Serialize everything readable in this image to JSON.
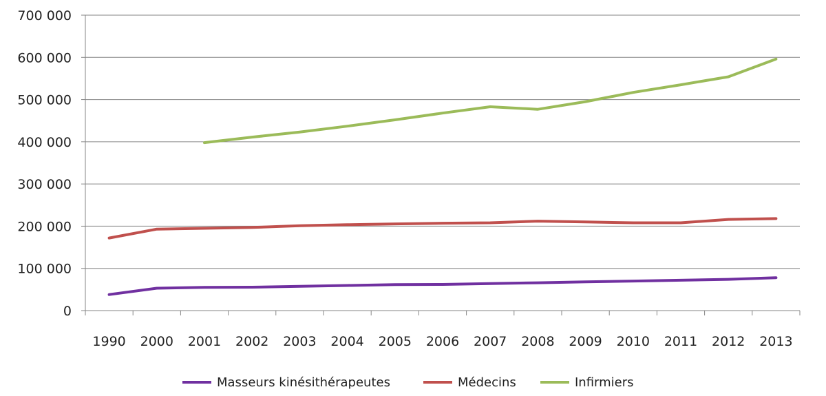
{
  "chart_data": {
    "type": "line",
    "title": "",
    "xlabel": "",
    "ylabel": "",
    "categories": [
      "1990",
      "2000",
      "2001",
      "2002",
      "2003",
      "2004",
      "2005",
      "2006",
      "2007",
      "2008",
      "2009",
      "2010",
      "2011",
      "2012",
      "2013"
    ],
    "ylim": [
      0,
      700000
    ],
    "yticks": [
      0,
      100000,
      200000,
      300000,
      400000,
      500000,
      600000,
      700000
    ],
    "ytick_labels": [
      "0",
      "100 000",
      "200 000",
      "300 000",
      "400 000",
      "500 000",
      "600 000",
      "700 000"
    ],
    "grid": true,
    "legend_position": "bottom",
    "series": [
      {
        "name": "Masseurs kinésithérapeutes",
        "color": "#7030A0",
        "values": [
          38000,
          53000,
          55000,
          55500,
          57500,
          59500,
          61500,
          62000,
          64000,
          66000,
          68000,
          70000,
          72000,
          74000,
          78000
        ]
      },
      {
        "name": "Médecins",
        "color": "#C0504D",
        "values": [
          172000,
          193000,
          195000,
          197000,
          201000,
          203500,
          205500,
          207000,
          208000,
          212000,
          210000,
          208000,
          208000,
          216000,
          218000
        ]
      },
      {
        "name": "Infirmiers",
        "color": "#9BBB59",
        "values": [
          null,
          null,
          398000,
          411000,
          423000,
          437000,
          452000,
          468000,
          483000,
          477000,
          495000,
          517000,
          535000,
          554000,
          596000
        ]
      }
    ]
  }
}
